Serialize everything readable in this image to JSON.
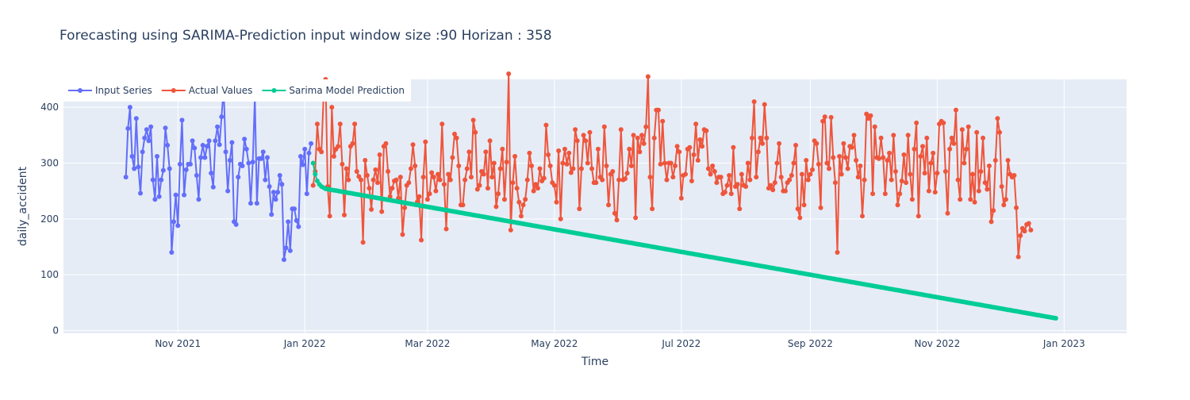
{
  "chart_data": {
    "type": "line",
    "title": "Forecasting using SARIMA-Prediction input window size :90  Horizan : 358",
    "xlabel": "Time",
    "ylabel": "daily_accident",
    "xlim": [
      "2021-09-07",
      "2023-01-31"
    ],
    "ylim": [
      -5,
      450
    ],
    "x_ticks": [
      {
        "date": "2021-11-01",
        "label": "Nov 2021"
      },
      {
        "date": "2022-01-01",
        "label": "Jan 2022"
      },
      {
        "date": "2022-03-01",
        "label": "Mar 2022"
      },
      {
        "date": "2022-05-01",
        "label": "May 2022"
      },
      {
        "date": "2022-07-01",
        "label": "Jul 2022"
      },
      {
        "date": "2022-09-01",
        "label": "Sep 2022"
      },
      {
        "date": "2022-11-01",
        "label": "Nov 2022"
      },
      {
        "date": "2023-01-01",
        "label": "Jan 2023"
      }
    ],
    "y_ticks": [
      0,
      100,
      200,
      300,
      400
    ],
    "grid": true,
    "legend_position": "top-left",
    "colors": {
      "plot_bg": "#e5ecf6",
      "grid": "#ffffff",
      "text": "#2a3f5f",
      "input_series": "#636efa",
      "actual_values": "#ef553b",
      "sarima_prediction": "#00cc96"
    },
    "series": [
      {
        "name": "Input Series",
        "color": "#636efa",
        "start_date": "2021-10-07",
        "values": [
          275,
          362,
          400,
          312,
          290,
          380,
          293,
          246,
          320,
          345,
          360,
          340,
          365,
          270,
          235,
          312,
          240,
          270,
          287,
          363,
          332,
          290,
          140,
          195,
          243,
          188,
          298,
          377,
          243,
          288,
          298,
          298,
          340,
          327,
          278,
          235,
          310,
          332,
          310,
          330,
          340,
          282,
          257,
          340,
          365,
          333,
          383,
          435,
          320,
          250,
          305,
          337,
          195,
          190,
          275,
          298,
          295,
          343,
          325,
          300,
          228,
          302,
          420,
          228,
          308,
          308,
          320,
          270,
          310,
          258,
          208,
          248,
          235,
          248,
          278,
          262,
          127,
          148,
          195,
          143,
          218,
          218,
          197,
          186,
          312,
          297,
          325,
          245,
          318,
          335
        ]
      },
      {
        "name": "Actual Values",
        "color": "#ef553b",
        "start_date": "2022-01-05",
        "values": [
          260,
          285,
          370,
          325,
          320,
          418,
          450,
          258,
          205,
          400,
          312,
          325,
          330,
          370,
          298,
          207,
          290,
          270,
          330,
          335,
          370,
          285,
          276,
          270,
          158,
          305,
          278,
          255,
          217,
          270,
          288,
          265,
          315,
          213,
          330,
          335,
          285,
          240,
          255,
          268,
          270,
          237,
          275,
          172,
          220,
          260,
          265,
          290,
          333,
          295,
          230,
          240,
          162,
          275,
          338,
          235,
          245,
          283,
          275,
          250,
          280,
          270,
          370,
          262,
          182,
          280,
          270,
          310,
          352,
          345,
          295,
          225,
          225,
          270,
          290,
          320,
          275,
          377,
          355,
          253,
          260,
          285,
          280,
          320,
          255,
          340,
          275,
          300,
          222,
          245,
          290,
          325,
          235,
          302,
          460,
          180,
          265,
          312,
          255,
          230,
          205,
          225,
          235,
          270,
          318,
          295,
          250,
          262,
          255,
          290,
          268,
          273,
          368,
          315,
          295,
          265,
          260,
          230,
          322,
          200,
          300,
          325,
          298,
          318,
          283,
          290,
          360,
          340,
          218,
          290,
          350,
          340,
          300,
          355,
          290,
          265,
          265,
          325,
          275,
          270,
          365,
          295,
          225,
          280,
          285,
          210,
          198,
          270,
          360,
          270,
          272,
          282,
          325,
          295,
          350,
          202,
          345,
          320,
          350,
          335,
          365,
          455,
          275,
          218,
          345,
          395,
          395,
          298,
          375,
          300,
          270,
          300,
          300,
          275,
          295,
          330,
          320,
          237,
          278,
          280,
          325,
          328,
          268,
          315,
          370,
          305,
          342,
          330,
          360,
          358,
          290,
          280,
          295,
          285,
          265,
          275,
          275,
          245,
          248,
          260,
          278,
          245,
          328,
          258,
          262,
          218,
          280,
          260,
          258,
          300,
          270,
          345,
          410,
          275,
          320,
          345,
          335,
          405,
          345,
          255,
          260,
          252,
          265,
          300,
          335,
          275,
          250,
          250,
          265,
          270,
          278,
          300,
          332,
          218,
          202,
          280,
          225,
          305,
          270,
          280,
          288,
          340,
          335,
          298,
          220,
          375,
          383,
          300,
          290,
          382,
          310,
          265,
          140,
          312,
          280,
          335,
          310,
          290,
          330,
          328,
          350,
          305,
          275,
          295,
          205,
          270,
          388,
          380,
          385,
          245,
          365,
          310,
          308,
          345,
          310,
          245,
          305,
          318,
          270,
          350,
          285,
          225,
          245,
          268,
          315,
          265,
          350,
          280,
          235,
          325,
          372,
          205,
          312,
          330,
          282,
          345,
          250,
          300,
          318,
          248,
          282,
          370,
          375,
          372,
          285,
          210,
          325,
          345,
          335,
          395,
          270,
          235,
          360,
          300,
          325,
          365,
          235,
          280,
          230,
          355,
          250,
          285,
          345,
          265,
          253,
          295,
          195,
          215,
          305,
          380,
          355,
          258,
          225,
          235,
          305,
          280,
          275,
          278,
          220,
          132,
          170,
          183,
          178,
          190,
          192,
          180
        ]
      },
      {
        "name": "Sarima Model Prediction",
        "color": "#00cc96",
        "start_date": "2022-01-05",
        "start_values": [
          300,
          280,
          268,
          262,
          258,
          256,
          254
        ],
        "end_value": 22,
        "length": 358
      }
    ]
  }
}
